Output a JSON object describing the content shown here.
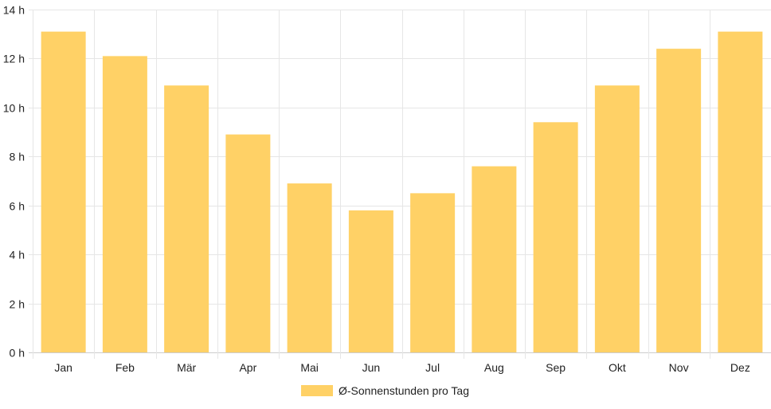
{
  "chart_data": {
    "type": "bar",
    "categories": [
      "Jan",
      "Feb",
      "Mär",
      "Apr",
      "Mai",
      "Jun",
      "Jul",
      "Aug",
      "Sep",
      "Okt",
      "Nov",
      "Dez"
    ],
    "series": [
      {
        "name": "Ø-Sonnenstunden pro Tag",
        "values": [
          13.1,
          12.1,
          10.9,
          8.9,
          6.9,
          5.8,
          6.5,
          7.6,
          9.4,
          10.9,
          12.4,
          13.1
        ],
        "color": "#FFD166"
      }
    ],
    "ylim": [
      0,
      14
    ],
    "yticks": [
      0,
      2,
      4,
      6,
      8,
      10,
      12,
      14
    ],
    "ytick_labels": [
      "0 h",
      "2 h",
      "4 h",
      "6 h",
      "8 h",
      "10 h",
      "12 h",
      "14 h"
    ],
    "grid": true,
    "legend_position": "bottom"
  }
}
